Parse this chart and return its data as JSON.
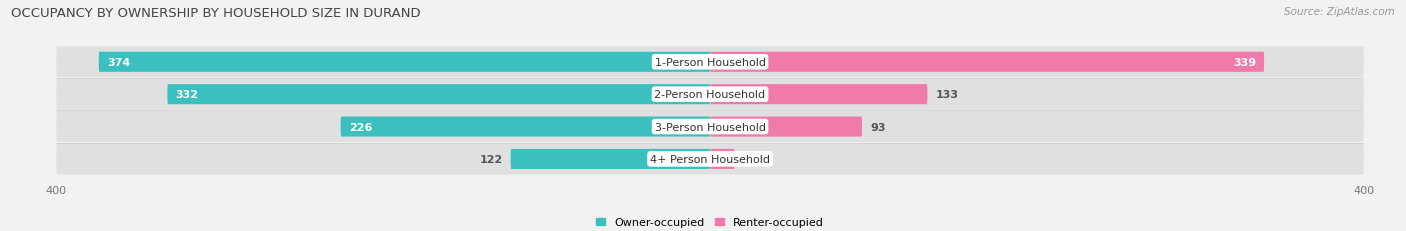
{
  "title": "OCCUPANCY BY OWNERSHIP BY HOUSEHOLD SIZE IN DURAND",
  "source": "Source: ZipAtlas.com",
  "categories": [
    "1-Person Household",
    "2-Person Household",
    "3-Person Household",
    "4+ Person Household"
  ],
  "owner_values": [
    374,
    332,
    226,
    122
  ],
  "renter_values": [
    339,
    133,
    93,
    0
  ],
  "owner_color": "#3BBFBF",
  "renter_color": "#F07BAA",
  "row_bg_color": "#e8e8e8",
  "background_color": "#f2f2f2",
  "axis_max": 400,
  "legend_owner": "Owner-occupied",
  "legend_renter": "Renter-occupied",
  "title_fontsize": 9.5,
  "source_fontsize": 7.5,
  "label_fontsize": 8,
  "value_fontsize": 8,
  "bar_height": 0.62,
  "fig_width": 14.06,
  "fig_height": 2.32
}
